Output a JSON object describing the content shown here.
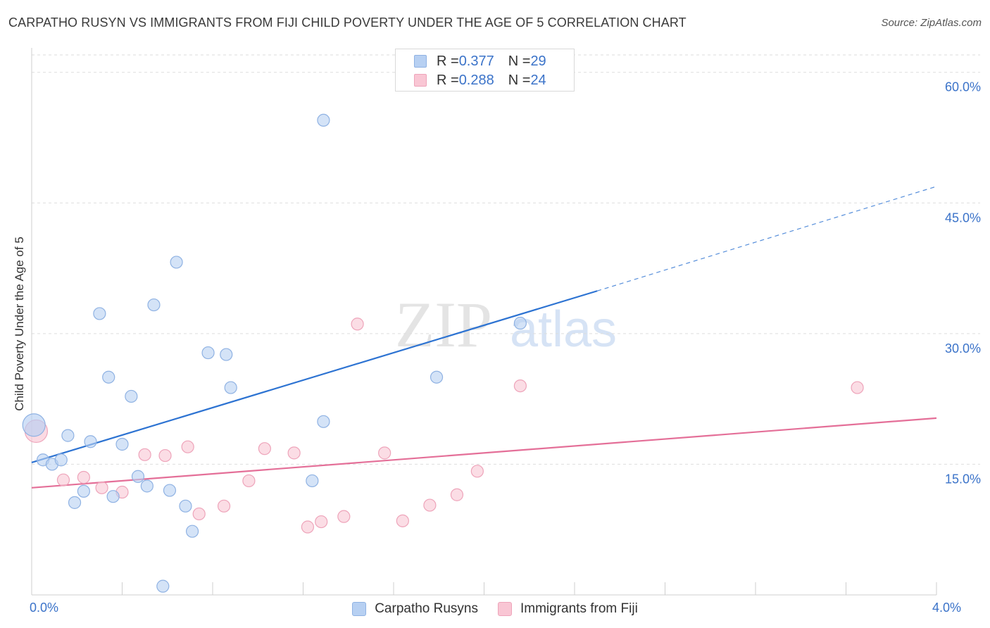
{
  "title": "CARPATHO RUSYN VS IMMIGRANTS FROM FIJI CHILD POVERTY UNDER THE AGE OF 5 CORRELATION CHART",
  "source": "Source: ZipAtlas.com",
  "watermark": {
    "part1": "ZIP",
    "part2": "atlas"
  },
  "legend_top": [
    {
      "r_label": "R = ",
      "r_value": "0.377",
      "n_label": "N = ",
      "n_value": "29"
    },
    {
      "r_label": "R = ",
      "r_value": "0.288",
      "n_label": "N = ",
      "n_value": "24"
    }
  ],
  "legend_bottom": [
    "Carpatho Rusyns",
    "Immigrants from Fiji"
  ],
  "colors": {
    "blue_fill": "#b7d0f2",
    "blue_stroke": "#8fb2e3",
    "blue_line": "#2d73d2",
    "pink_fill": "#f9c6d4",
    "pink_stroke": "#eea4ba",
    "pink_line": "#e46f98",
    "tick_text": "#3b73c9",
    "grid": "#dddddd"
  },
  "chart_data": {
    "type": "scatter",
    "title": "CARPATHO RUSYN VS IMMIGRANTS FROM FIJI CHILD POVERTY UNDER THE AGE OF 5 CORRELATION CHART",
    "xlabel": "",
    "ylabel": "Child Poverty Under the Age of 5",
    "xlim": [
      0,
      4
    ],
    "ylim": [
      0,
      62
    ],
    "x_tick_labels": [
      {
        "value": 0,
        "label": "0.0%"
      },
      {
        "value": 4,
        "label": "4.0%"
      }
    ],
    "y_tick_labels": [
      {
        "value": 15,
        "label": "15.0%"
      },
      {
        "value": 30,
        "label": "30.0%"
      },
      {
        "value": 45,
        "label": "45.0%"
      },
      {
        "value": 60,
        "label": "60.0%"
      }
    ],
    "grid": true,
    "legend_position": "top-center",
    "series": [
      {
        "name": "Carpatho Rusyns",
        "points": [
          [
            0.01,
            19.5,
            1
          ],
          [
            0.05,
            15.5,
            0
          ],
          [
            0.09,
            15.0,
            0
          ],
          [
            0.13,
            15.5,
            0
          ],
          [
            0.16,
            18.3,
            0
          ],
          [
            0.19,
            10.6,
            0
          ],
          [
            0.23,
            11.9,
            0
          ],
          [
            0.26,
            17.6,
            0
          ],
          [
            0.3,
            32.3,
            0
          ],
          [
            0.34,
            25.0,
            0
          ],
          [
            0.36,
            11.3,
            0
          ],
          [
            0.4,
            17.3,
            0
          ],
          [
            0.44,
            22.8,
            0
          ],
          [
            0.47,
            13.6,
            0
          ],
          [
            0.51,
            12.5,
            0
          ],
          [
            0.54,
            33.3,
            0
          ],
          [
            0.58,
            1.0,
            0
          ],
          [
            0.61,
            12.0,
            0
          ],
          [
            0.64,
            38.2,
            0
          ],
          [
            0.68,
            10.2,
            0
          ],
          [
            0.71,
            7.3,
            0
          ],
          [
            0.78,
            27.8,
            0
          ],
          [
            0.86,
            27.6,
            0
          ],
          [
            0.88,
            23.8,
            0
          ],
          [
            1.24,
            13.1,
            0
          ],
          [
            1.29,
            19.9,
            0
          ],
          [
            1.29,
            54.5,
            0
          ],
          [
            1.79,
            25.0,
            0
          ],
          [
            2.16,
            31.2,
            0
          ]
        ],
        "trend": {
          "x": [
            0,
            2.5
          ],
          "y": [
            15.2,
            34.9
          ],
          "dashed_to": [
            4,
            46.9
          ]
        }
      },
      {
        "name": "Immigrants from Fiji",
        "points": [
          [
            0.02,
            18.8,
            1
          ],
          [
            0.14,
            13.2,
            0
          ],
          [
            0.23,
            13.5,
            0
          ],
          [
            0.31,
            12.3,
            0
          ],
          [
            0.4,
            11.8,
            0
          ],
          [
            0.5,
            16.1,
            0
          ],
          [
            0.59,
            16.0,
            0
          ],
          [
            0.69,
            17.0,
            0
          ],
          [
            0.74,
            9.3,
            0
          ],
          [
            0.85,
            10.2,
            0
          ],
          [
            0.96,
            13.1,
            0
          ],
          [
            1.03,
            16.8,
            0
          ],
          [
            1.16,
            16.3,
            0
          ],
          [
            1.22,
            7.8,
            0
          ],
          [
            1.28,
            8.4,
            0
          ],
          [
            1.38,
            9.0,
            0
          ],
          [
            1.44,
            31.1,
            0
          ],
          [
            1.56,
            16.3,
            0
          ],
          [
            1.64,
            8.5,
            0
          ],
          [
            1.76,
            10.3,
            0
          ],
          [
            1.88,
            11.5,
            0
          ],
          [
            1.97,
            14.2,
            0
          ],
          [
            2.16,
            24.0,
            0
          ],
          [
            3.65,
            23.8,
            0
          ]
        ],
        "trend": {
          "x": [
            0,
            4
          ],
          "y": [
            12.3,
            20.3
          ]
        }
      }
    ]
  }
}
